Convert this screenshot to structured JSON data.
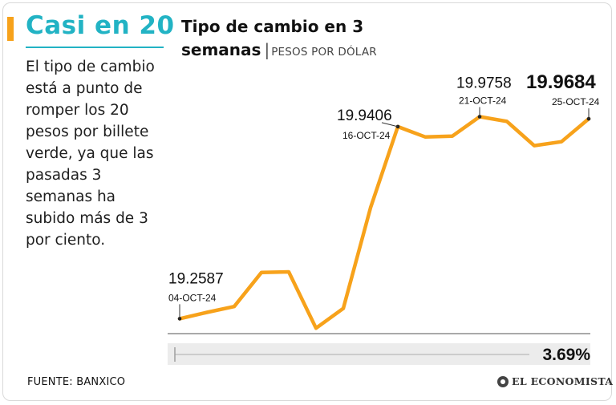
{
  "header": {
    "headline": "Casi en 20",
    "intro": "El tipo de cambio está a punto de romper los 20 pesos por billete verde, ya que las pasadas 3 semanas ha subido más de 3 por ciento."
  },
  "colors": {
    "accent": "#f7a21b",
    "headline": "#22b3c4",
    "line": "#f7a21b",
    "change_bar": "#ececec"
  },
  "chart_data": {
    "type": "line",
    "title_line1": "Tipo de cambio en 3",
    "title_line2": "semanas",
    "unit": "PESOS POR DÓLAR",
    "xlabel": "",
    "ylabel": "",
    "grid": false,
    "ylim": [
      19.2,
      20.0
    ],
    "series": [
      {
        "values": [
          19.2587,
          19.281,
          19.302,
          19.423,
          19.425,
          19.225,
          19.295,
          19.653,
          19.9406,
          19.904,
          19.907,
          19.9758,
          19.959,
          19.873,
          19.887,
          19.9684
        ]
      }
    ],
    "annotations": [
      {
        "index": 0,
        "value": "19.2587",
        "date": "04-OCT-24"
      },
      {
        "index": 8,
        "value": "19.9406",
        "date": "16-OCT-24"
      },
      {
        "index": 11,
        "value": "19.9758",
        "date": "21-OCT-24"
      },
      {
        "index": 15,
        "value": "19.9684",
        "date": "25-OCT-24"
      }
    ],
    "change": "3.69%"
  },
  "footer": {
    "source": "FUENTE: BANXICO",
    "brand": "EL ECONOMISTA"
  }
}
